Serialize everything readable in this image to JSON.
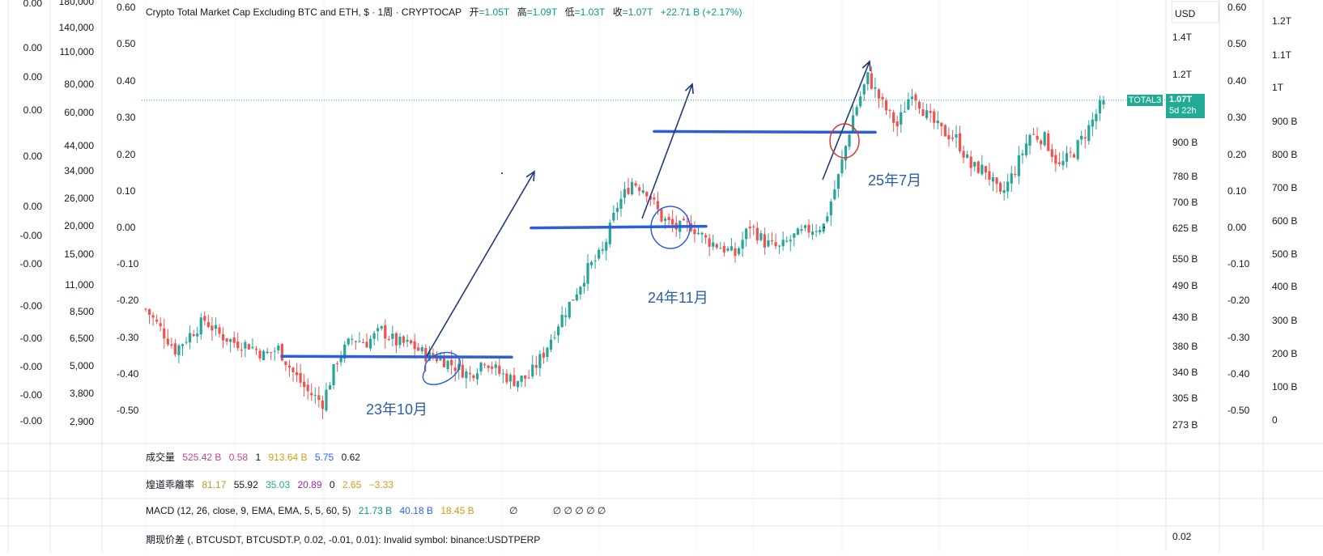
{
  "header": {
    "symbol_title": "Crypto Total Market Cap Excluding BTC and ETH, $ · 1周 · CRYPTOCAP",
    "open_label": "开",
    "open_value": "=1.05T",
    "high_label": "高",
    "high_value": "=1.09T",
    "low_label": "低",
    "low_value": "=1.03T",
    "close_label": "收",
    "close_value": "=1.07T",
    "change": "+22.71 B (+2.17%)"
  },
  "price_axis": {
    "currency": "USD",
    "ticks": [
      "1.4T",
      "1.2T",
      "900 B",
      "780 B",
      "700 B",
      "625 B",
      "550 B",
      "490 B",
      "430 B",
      "380 B",
      "340 B",
      "305 B",
      "273 B"
    ],
    "last_label": "TOTAL3",
    "last_value": "1.07T",
    "countdown": "5d 22h"
  },
  "left_axis_a": {
    "ticks": [
      "0.00",
      "0.00",
      "0.00",
      "0.00",
      "0.00",
      "0.00",
      "-0.00",
      "-0.00",
      "-0.00",
      "-0.00",
      "-0.00",
      "-0.00",
      "-0.00"
    ]
  },
  "left_axis_b": {
    "ticks": [
      "180,000",
      "140,000",
      "110,000",
      "80,000",
      "60,000",
      "44,000",
      "34,000",
      "26,000",
      "20,000",
      "15,000",
      "11,000",
      "8,500",
      "6,500",
      "5,000",
      "3,800",
      "2,900"
    ]
  },
  "left_axis_c": {
    "ticks": [
      "0.60",
      "0.50",
      "0.40",
      "0.30",
      "0.20",
      "0.10",
      "0.00",
      "-0.10",
      "-0.20",
      "-0.30",
      "-0.40",
      "-0.50"
    ]
  },
  "right_axis_c": {
    "ticks": [
      "0.60",
      "0.50",
      "0.40",
      "0.30",
      "0.20",
      "0.10",
      "0.00",
      "-0.10",
      "-0.20",
      "-0.30",
      "-0.40",
      "-0.50"
    ]
  },
  "right_axis_d": {
    "ticks": [
      "1.2T",
      "1.1T",
      "1T",
      "900 B",
      "800 B",
      "700 B",
      "600 B",
      "500 B",
      "400 B",
      "300 B",
      "200 B",
      "100 B",
      "0"
    ]
  },
  "annotations": {
    "a1": "23年10月",
    "a2": "24年11月",
    "a3": "25年7月"
  },
  "panes": {
    "volume": {
      "label": "成交量",
      "values": [
        "525.42 B",
        "0.58",
        "1",
        "913.64 B",
        "5.75",
        "0.62"
      ]
    },
    "channel": {
      "label": "煌道乖離率",
      "values": [
        "81.17",
        "55.92",
        "35.03",
        "20.89",
        "0",
        "2.65",
        "−3.33"
      ]
    },
    "macd": {
      "label": "MACD (12, 26, close, 9, EMA, EMA, 5, 5, 60, 5)",
      "values": [
        "21.73 B",
        "40.18 B",
        "18.45 B"
      ],
      "extra": "∅",
      "extra2": "∅ ∅ ∅ ∅ ∅"
    },
    "spread": {
      "label": "期现价差 (, BTCUSDT, BTCUSDT.P, 0.02, -0.01, 0.01): Invalid symbol: binance:USDTPERP",
      "value": "0.02"
    }
  },
  "colors": {
    "up": "#26a69a",
    "down": "#ef5350",
    "line": "#2b5fd9",
    "arrow": "#1e3a78",
    "circle_red": "#d63a3a"
  },
  "chart_data": {
    "type": "candlestick",
    "title": "Crypto Total Market Cap Excluding BTC and ETH, $ · 1周 · CRYPTOCAP",
    "interval": "1W",
    "ylabel": "USD",
    "y_scale": "log",
    "ylim": [
      255,
      1500
    ],
    "y_unit": "B",
    "last": {
      "open": 1050,
      "high": 1090,
      "low": 1030,
      "close": 1070
    },
    "horizontal_levels": [
      350,
      615,
      930
    ],
    "path": [
      [
        0,
        430
      ],
      [
        4,
        395
      ],
      [
        8,
        360
      ],
      [
        12,
        385
      ],
      [
        16,
        410
      ],
      [
        20,
        385
      ],
      [
        24,
        372
      ],
      [
        28,
        368
      ],
      [
        32,
        352
      ],
      [
        36,
        362
      ],
      [
        40,
        326
      ],
      [
        44,
        300
      ],
      [
        48,
        286
      ],
      [
        52,
        345
      ],
      [
        56,
        378
      ],
      [
        60,
        372
      ],
      [
        64,
        392
      ],
      [
        68,
        372
      ],
      [
        72,
        368
      ],
      [
        76,
        352
      ],
      [
        80,
        347
      ],
      [
        84,
        335
      ],
      [
        88,
        322
      ],
      [
        92,
        346
      ],
      [
        96,
        325
      ],
      [
        100,
        315
      ],
      [
        104,
        320
      ],
      [
        108,
        355
      ],
      [
        112,
        405
      ],
      [
        116,
        452
      ],
      [
        120,
        512
      ],
      [
        124,
        552
      ],
      [
        128,
        675
      ],
      [
        132,
        750
      ],
      [
        136,
        722
      ],
      [
        140,
        640
      ],
      [
        144,
        612
      ],
      [
        148,
        620
      ],
      [
        152,
        582
      ],
      [
        156,
        565
      ],
      [
        160,
        545
      ],
      [
        164,
        620
      ],
      [
        168,
        575
      ],
      [
        172,
        560
      ],
      [
        176,
        590
      ],
      [
        180,
        608
      ],
      [
        184,
        620
      ],
      [
        188,
        765
      ],
      [
        192,
        1000
      ],
      [
        196,
        1185
      ],
      [
        200,
        1050
      ],
      [
        204,
        955
      ],
      [
        208,
        1120
      ],
      [
        212,
        1000
      ],
      [
        216,
        935
      ],
      [
        220,
        905
      ],
      [
        224,
        800
      ],
      [
        228,
        790
      ],
      [
        232,
        700
      ],
      [
        236,
        790
      ],
      [
        240,
        920
      ],
      [
        244,
        905
      ],
      [
        248,
        800
      ],
      [
        252,
        855
      ],
      [
        256,
        950
      ],
      [
        260,
        1070
      ]
    ]
  }
}
